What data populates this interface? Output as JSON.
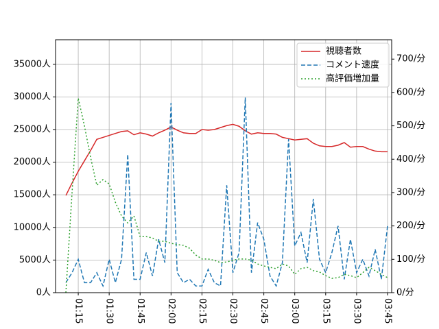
{
  "chart_data": {
    "type": "line",
    "x": [
      "01:09",
      "01:12",
      "01:15",
      "01:18",
      "01:21",
      "01:24",
      "01:27",
      "01:30",
      "01:33",
      "01:36",
      "01:39",
      "01:42",
      "01:45",
      "01:48",
      "01:51",
      "01:54",
      "01:57",
      "02:00",
      "02:03",
      "02:06",
      "02:09",
      "02:12",
      "02:15",
      "02:18",
      "02:21",
      "02:24",
      "02:27",
      "02:30",
      "02:33",
      "02:36",
      "02:39",
      "02:42",
      "02:45",
      "02:48",
      "02:51",
      "02:54",
      "02:57",
      "03:00",
      "03:03",
      "03:06",
      "03:09",
      "03:12",
      "03:15",
      "03:18",
      "03:21",
      "03:24",
      "03:27",
      "03:30",
      "03:33",
      "03:36",
      "03:39",
      "03:42",
      "03:45"
    ],
    "series": [
      {
        "name": "視聴者数",
        "color": "#d62728",
        "dash": "solid",
        "values": [
          14900,
          16800,
          18600,
          20200,
          21800,
          23500,
          23800,
          24100,
          24400,
          24700,
          24800,
          24200,
          24500,
          24300,
          24000,
          24500,
          24900,
          25400,
          24900,
          24500,
          24400,
          24400,
          25000,
          24900,
          25000,
          25300,
          25600,
          25800,
          25500,
          24800,
          24300,
          24500,
          24400,
          24400,
          24300,
          23800,
          23600,
          23400,
          23500,
          23600,
          22900,
          22500,
          22400,
          22400,
          22600,
          23000,
          22300,
          22400,
          22400,
          22000,
          21700,
          21600,
          21600
        ]
      },
      {
        "name": "コメント速度",
        "color": "#1f77b4",
        "dash": "dashed",
        "axis": "y2",
        "values": [
          30,
          60,
          100,
          30,
          30,
          60,
          20,
          100,
          30,
          100,
          415,
          40,
          40,
          120,
          50,
          160,
          90,
          569,
          60,
          30,
          40,
          20,
          20,
          70,
          30,
          20,
          322,
          60,
          120,
          585,
          60,
          210,
          160,
          50,
          20,
          90,
          460,
          140,
          180,
          90,
          281,
          100,
          60,
          120,
          200,
          40,
          160,
          60,
          100,
          50,
          130,
          40,
          200
        ]
      },
      {
        "name": "高評価増加量",
        "color": "#2ca02c",
        "dash": "dotted",
        "axis": "y2",
        "values": [
          0,
          300,
          583,
          500,
          405,
          322,
          339,
          326,
          271,
          230,
          209,
          230,
          168,
          168,
          164,
          154,
          154,
          148,
          144,
          142,
          133,
          113,
          101,
          101,
          97,
          90,
          92,
          97,
          101,
          101,
          97,
          86,
          80,
          76,
          72,
          86,
          80,
          55,
          72,
          76,
          66,
          62,
          51,
          43,
          45,
          55,
          51,
          45,
          60,
          76,
          66,
          55,
          45
        ]
      }
    ],
    "xlim": [
      "01:04",
      "03:47"
    ],
    "xticks": [
      "01:15",
      "01:30",
      "01:45",
      "02:00",
      "02:15",
      "02:30",
      "02:45",
      "03:00",
      "03:15",
      "03:30",
      "03:45"
    ],
    "ylim": [
      0,
      38760
    ],
    "yticks": [
      {
        "value": 0,
        "label": "0人"
      },
      {
        "value": 5000,
        "label": "5000人"
      },
      {
        "value": 10000,
        "label": "10000人"
      },
      {
        "value": 15000,
        "label": "15000人"
      },
      {
        "value": 20000,
        "label": "20000人"
      },
      {
        "value": 25000,
        "label": "25000人"
      },
      {
        "value": 30000,
        "label": "30000人"
      },
      {
        "value": 35000,
        "label": "35000人"
      }
    ],
    "y2lim": [
      0,
      758
    ],
    "y2ticks": [
      {
        "value": 0,
        "label": "0/分"
      },
      {
        "value": 100,
        "label": "100/分"
      },
      {
        "value": 200,
        "label": "200/分"
      },
      {
        "value": 300,
        "label": "300/分"
      },
      {
        "value": 400,
        "label": "400/分"
      },
      {
        "value": 500,
        "label": "500/分"
      },
      {
        "value": 600,
        "label": "600/分"
      },
      {
        "value": 700,
        "label": "700/分"
      }
    ],
    "grid": true,
    "legend": "upper right"
  }
}
